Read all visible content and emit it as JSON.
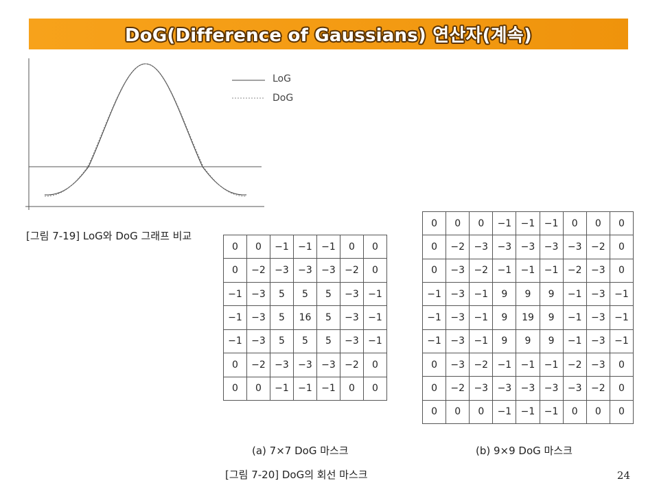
{
  "title": "DoG(Difference of Gaussians) 연산자(계속)",
  "graph": {
    "legend": [
      {
        "name": "LoG",
        "style": "solid",
        "color": "#444444"
      },
      {
        "name": "DoG",
        "style": "dotted",
        "color": "#888888"
      }
    ]
  },
  "caption_fig19": "[그림 7-19] LoG와 DoG 그래프 비교",
  "mask7": {
    "caption": "(a) 7×7 DoG 마스크",
    "rows": [
      [
        "0",
        "0",
        "−1",
        "−1",
        "−1",
        "0",
        "0"
      ],
      [
        "0",
        "−2",
        "−3",
        "−3",
        "−3",
        "−2",
        "0"
      ],
      [
        "−1",
        "−3",
        "5",
        "5",
        "5",
        "−3",
        "−1"
      ],
      [
        "−1",
        "−3",
        "5",
        "16",
        "5",
        "−3",
        "−1"
      ],
      [
        "−1",
        "−3",
        "5",
        "5",
        "5",
        "−3",
        "−1"
      ],
      [
        "0",
        "−2",
        "−3",
        "−3",
        "−3",
        "−2",
        "0"
      ],
      [
        "0",
        "0",
        "−1",
        "−1",
        "−1",
        "0",
        "0"
      ]
    ]
  },
  "mask9": {
    "caption": "(b) 9×9 DoG 마스크",
    "rows": [
      [
        "0",
        "0",
        "0",
        "−1",
        "−1",
        "−1",
        "0",
        "0",
        "0"
      ],
      [
        "0",
        "−2",
        "−3",
        "−3",
        "−3",
        "−3",
        "−3",
        "−2",
        "0"
      ],
      [
        "0",
        "−3",
        "−2",
        "−1",
        "−1",
        "−1",
        "−2",
        "−3",
        "0"
      ],
      [
        "−1",
        "−3",
        "−1",
        "9",
        "9",
        "9",
        "−1",
        "−3",
        "−1"
      ],
      [
        "−1",
        "−3",
        "−1",
        "9",
        "19",
        "9",
        "−1",
        "−3",
        "−1"
      ],
      [
        "−1",
        "−3",
        "−1",
        "9",
        "9",
        "9",
        "−1",
        "−3",
        "−1"
      ],
      [
        "0",
        "−3",
        "−2",
        "−1",
        "−1",
        "−1",
        "−2",
        "−3",
        "0"
      ],
      [
        "0",
        "−2",
        "−3",
        "−3",
        "−3",
        "−3",
        "−3",
        "−2",
        "0"
      ],
      [
        "0",
        "0",
        "0",
        "−1",
        "−1",
        "−1",
        "0",
        "0",
        "0"
      ]
    ]
  },
  "caption_fig20": "[그림 7-20] DoG의 회선 마스크",
  "page_number": "24"
}
